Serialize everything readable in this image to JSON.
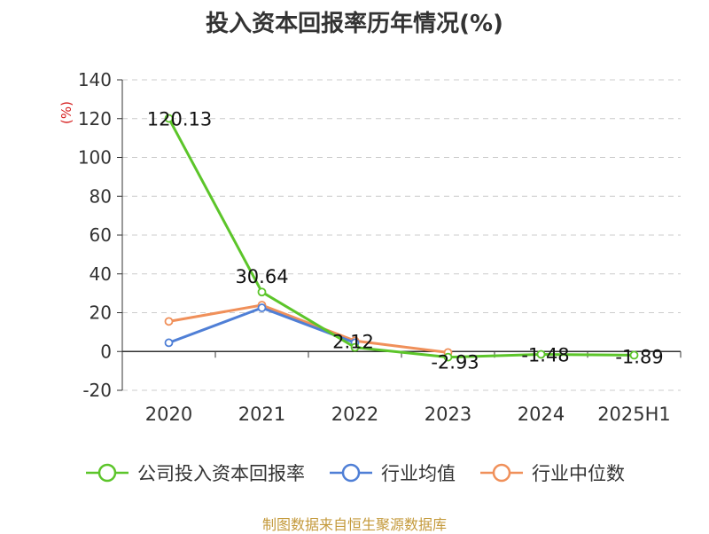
{
  "chart_data": {
    "type": "line",
    "title": "投入资本回报率历年情况(%)",
    "ylabel": "(%)",
    "categories": [
      "2020",
      "2021",
      "2022",
      "2023",
      "2024",
      "2025H1"
    ],
    "yticks": [
      "140",
      "120",
      "100",
      "80",
      "60",
      "40",
      "20",
      "0",
      "-20"
    ],
    "ylim": [
      -20,
      140
    ],
    "grid": true,
    "legend_position": "bottom",
    "series": [
      {
        "name": "公司投入资本回报率",
        "color": "#5cc52a",
        "values": [
          120.13,
          30.64,
          2.12,
          -2.93,
          -1.48,
          -1.89
        ],
        "labels": [
          "120.13",
          "30.64",
          "2.12",
          "-2.93",
          "-1.48",
          "-1.89"
        ]
      },
      {
        "name": "行业均值",
        "color": "#4f7fd6",
        "values": [
          4.5,
          22.5,
          4.5,
          null,
          null,
          null
        ]
      },
      {
        "name": "行业中位数",
        "color": "#f0905a",
        "values": [
          15.5,
          23.9,
          5.5,
          -0.5,
          null,
          null
        ]
      }
    ]
  },
  "source": "制图数据来自恒生聚源数据库"
}
